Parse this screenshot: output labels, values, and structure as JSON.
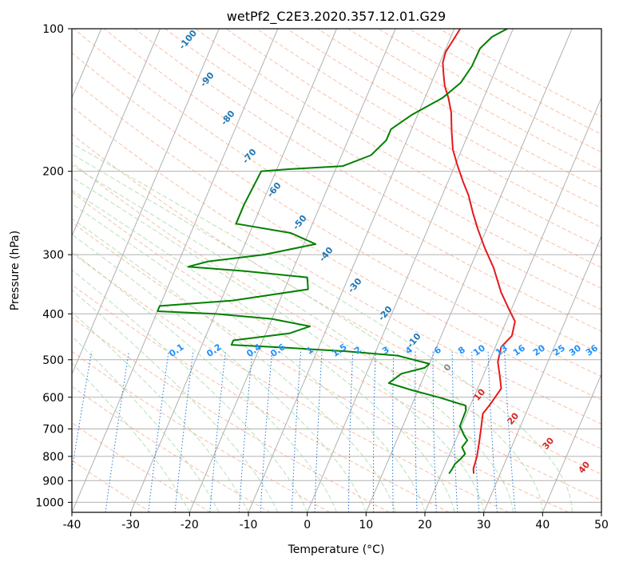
{
  "chart_data": {
    "type": "line",
    "title": "wetPf2_C2E3.2020.357.12.01.G29",
    "xlabel": "Temperature (°C)",
    "ylabel": "Pressure (hPa)",
    "xlim": [
      -40,
      50
    ],
    "ylim": [
      1050,
      100
    ],
    "y_scale": "log",
    "x_ticks": [
      "-40",
      "-30",
      "-20",
      "-10",
      "0",
      "10",
      "20",
      "30",
      "40",
      "50"
    ],
    "y_ticks": [
      "100",
      "200",
      "300",
      "400",
      "500",
      "600",
      "700",
      "800",
      "900",
      "1000"
    ],
    "grid": true,
    "series": [
      {
        "color": "#e41a1c",
        "points": [
          [
            25.5,
            870
          ],
          [
            25.1,
            850
          ],
          [
            24.8,
            800
          ],
          [
            24.2,
            750
          ],
          [
            23.5,
            700
          ],
          [
            22.7,
            650
          ],
          [
            23.3,
            620
          ],
          [
            24.0,
            575
          ],
          [
            23.0,
            545
          ],
          [
            21.5,
            505
          ],
          [
            21.0,
            470
          ],
          [
            22.0,
            445
          ],
          [
            21.5,
            415
          ],
          [
            19.5,
            390
          ],
          [
            17.0,
            360
          ],
          [
            14.0,
            320
          ],
          [
            11.0,
            290
          ],
          [
            8.5,
            265
          ],
          [
            6.5,
            245
          ],
          [
            4.5,
            225
          ],
          [
            2.5,
            210
          ],
          [
            0.5,
            195
          ],
          [
            -1.5,
            180
          ],
          [
            -3.0,
            165
          ],
          [
            -4.5,
            150
          ],
          [
            -6.0,
            140
          ],
          [
            -7.5,
            132
          ],
          [
            -8.5,
            125
          ],
          [
            -9.5,
            118
          ],
          [
            -9.8,
            112
          ],
          [
            -9.4,
            106
          ],
          [
            -9.0,
            100
          ]
        ]
      },
      {
        "color": "#008000",
        "points": [
          [
            21.3,
            870
          ],
          [
            21.5,
            850
          ],
          [
            21.6,
            830
          ],
          [
            22.2,
            810
          ],
          [
            22.6,
            790
          ],
          [
            21.6,
            765
          ],
          [
            22.0,
            740
          ],
          [
            21.0,
            720
          ],
          [
            19.7,
            690
          ],
          [
            19.6,
            640
          ],
          [
            19.2,
            625
          ],
          [
            14.0,
            600
          ],
          [
            9.0,
            580
          ],
          [
            4.5,
            560
          ],
          [
            6.0,
            535
          ],
          [
            9.5,
            520
          ],
          [
            10.0,
            510
          ],
          [
            4.0,
            490
          ],
          [
            -5.0,
            480
          ],
          [
            -15.0,
            472
          ],
          [
            -25.0,
            465
          ],
          [
            -25.0,
            455
          ],
          [
            -16.0,
            440
          ],
          [
            -13.0,
            425
          ],
          [
            -20.0,
            410
          ],
          [
            -30.0,
            400
          ],
          [
            -40.0,
            395
          ],
          [
            -40.0,
            385
          ],
          [
            -28.0,
            375
          ],
          [
            -16.0,
            355
          ],
          [
            -17.0,
            335
          ],
          [
            -28.0,
            325
          ],
          [
            -38.0,
            318
          ],
          [
            -35.0,
            310
          ],
          [
            -26.0,
            300
          ],
          [
            -18.0,
            285
          ],
          [
            -23.0,
            270
          ],
          [
            -33.0,
            258
          ],
          [
            -33.0,
            235
          ],
          [
            -32.5,
            200
          ],
          [
            -28.0,
            198
          ],
          [
            -19.0,
            195
          ],
          [
            -15.0,
            185
          ],
          [
            -13.5,
            172
          ],
          [
            -13.5,
            163
          ],
          [
            -11.0,
            152
          ],
          [
            -7.0,
            140
          ],
          [
            -5.0,
            130
          ],
          [
            -4.3,
            120
          ],
          [
            -4.2,
            110
          ],
          [
            -3.0,
            104
          ],
          [
            -1.0,
            100
          ]
        ]
      }
    ],
    "dry_adiabat_labels": [
      "-100",
      "-90",
      "-80",
      "-70",
      "-60",
      "-50",
      "-40",
      "-30",
      "-20",
      "-10",
      "0",
      "10",
      "20",
      "30",
      "40"
    ],
    "mixing_ratio_labels": [
      "0.1",
      "0.2",
      "0.4",
      "0.6",
      "1",
      "1.5",
      "2",
      "3",
      "4",
      "6",
      "8",
      "10",
      "13",
      "16",
      "20",
      "25",
      "30",
      "36"
    ]
  }
}
